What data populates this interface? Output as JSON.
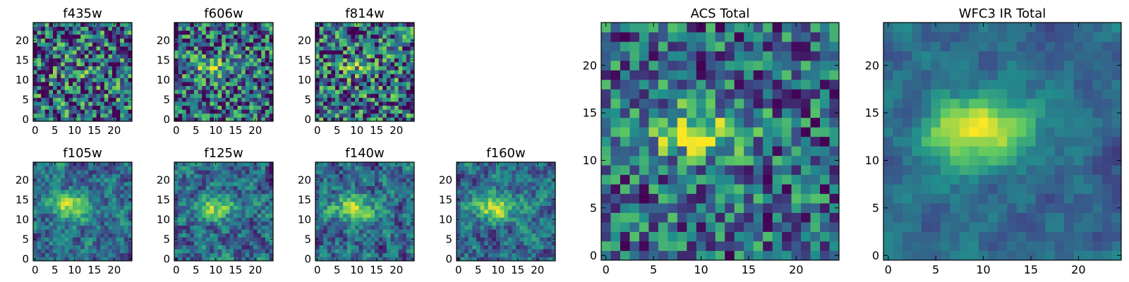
{
  "figure": {
    "colormap": "viridis",
    "colors": [
      "#440154",
      "#3b528b",
      "#21918c",
      "#5ec962",
      "#fde725"
    ]
  },
  "chart_data": [
    {
      "type": "heatmap",
      "title": "f435w",
      "size": 25,
      "xticks": [
        "0",
        "5",
        "10",
        "15",
        "20"
      ],
      "yticks": [
        "0",
        "5",
        "10",
        "15",
        "20"
      ],
      "xlim": [
        0,
        25
      ],
      "ylim": [
        0,
        25
      ],
      "signal": 0.15,
      "noise": 0.6,
      "smooth": 0,
      "seed": 11
    },
    {
      "type": "heatmap",
      "title": "f606w",
      "size": 25,
      "xticks": [
        "0",
        "5",
        "10",
        "15",
        "20"
      ],
      "yticks": [
        "0",
        "5",
        "10",
        "15",
        "20"
      ],
      "xlim": [
        0,
        25
      ],
      "ylim": [
        0,
        25
      ],
      "signal": 0.3,
      "noise": 0.55,
      "smooth": 0,
      "seed": 23
    },
    {
      "type": "heatmap",
      "title": "f814w",
      "size": 25,
      "xticks": [
        "0",
        "5",
        "10",
        "15",
        "20"
      ],
      "yticks": [
        "0",
        "5",
        "10",
        "15",
        "20"
      ],
      "xlim": [
        0,
        25
      ],
      "ylim": [
        0,
        25
      ],
      "signal": 0.2,
      "noise": 0.6,
      "smooth": 0,
      "seed": 37
    },
    {
      "type": "heatmap",
      "title": "f105w",
      "size": 25,
      "xticks": [
        "0",
        "5",
        "10",
        "15",
        "20"
      ],
      "yticks": [
        "0",
        "5",
        "10",
        "15",
        "20"
      ],
      "xlim": [
        0,
        25
      ],
      "ylim": [
        0,
        25
      ],
      "signal": 0.5,
      "noise": 0.45,
      "smooth": 1,
      "seed": 41
    },
    {
      "type": "heatmap",
      "title": "f125w",
      "size": 25,
      "xticks": [
        "0",
        "5",
        "10",
        "15",
        "20"
      ],
      "yticks": [
        "0",
        "5",
        "10",
        "15",
        "20"
      ],
      "xlim": [
        0,
        25
      ],
      "ylim": [
        0,
        25
      ],
      "signal": 0.4,
      "noise": 0.5,
      "smooth": 1,
      "seed": 53
    },
    {
      "type": "heatmap",
      "title": "f140w",
      "size": 25,
      "xticks": [
        "0",
        "5",
        "10",
        "15",
        "20"
      ],
      "yticks": [
        "0",
        "5",
        "10",
        "15",
        "20"
      ],
      "xlim": [
        0,
        25
      ],
      "ylim": [
        0,
        25
      ],
      "signal": 0.45,
      "noise": 0.5,
      "smooth": 1,
      "seed": 67
    },
    {
      "type": "heatmap",
      "title": "f160w",
      "size": 25,
      "xticks": [
        "0",
        "5",
        "10",
        "15",
        "20"
      ],
      "yticks": [
        "0",
        "5",
        "10",
        "15",
        "20"
      ],
      "xlim": [
        0,
        25
      ],
      "ylim": [
        0,
        25
      ],
      "signal": 0.55,
      "noise": 0.45,
      "smooth": 1,
      "seed": 79
    },
    {
      "type": "heatmap",
      "title": "ACS Total",
      "size": 25,
      "xticks": [
        "0",
        "5",
        "10",
        "15",
        "20"
      ],
      "yticks": [
        "0",
        "5",
        "10",
        "15",
        "20"
      ],
      "xlim": [
        0,
        25
      ],
      "ylim": [
        0,
        25
      ],
      "signal": 0.45,
      "noise": 0.45,
      "smooth": 0,
      "seed": 97
    },
    {
      "type": "heatmap",
      "title": "WFC3 IR Total",
      "size": 25,
      "xticks": [
        "0",
        "5",
        "10",
        "15",
        "20"
      ],
      "yticks": [
        "0",
        "5",
        "10",
        "15",
        "20"
      ],
      "xlim": [
        0,
        25
      ],
      "ylim": [
        0,
        25
      ],
      "signal": 0.7,
      "noise": 0.35,
      "smooth": 2,
      "seed": 113
    }
  ]
}
